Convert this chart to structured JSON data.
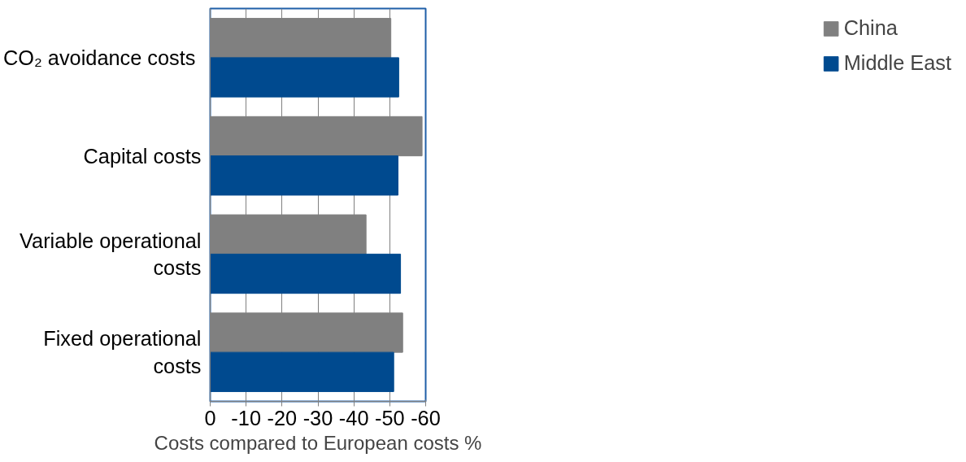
{
  "chart_data": {
    "type": "bar",
    "orientation": "horizontal",
    "categories": [
      "CO₂  avoidance costs",
      "Capital costs",
      "Variable operational\ncosts",
      "Fixed operational\ncosts"
    ],
    "series": [
      {
        "name": "China",
        "color": "#808080",
        "values": [
          -50.3,
          -59.0,
          -43.4,
          -53.6
        ]
      },
      {
        "name": "Middle East",
        "color": "#004a8f",
        "values": [
          -52.5,
          -52.3,
          -53.0,
          -51.1
        ]
      }
    ],
    "xlim": [
      0,
      -60
    ],
    "xticks": [
      0,
      -10,
      -20,
      -30,
      -40,
      -50,
      -60
    ],
    "xlabel": "Costs compared to European costs %",
    "grid": "x",
    "legend": "right"
  }
}
